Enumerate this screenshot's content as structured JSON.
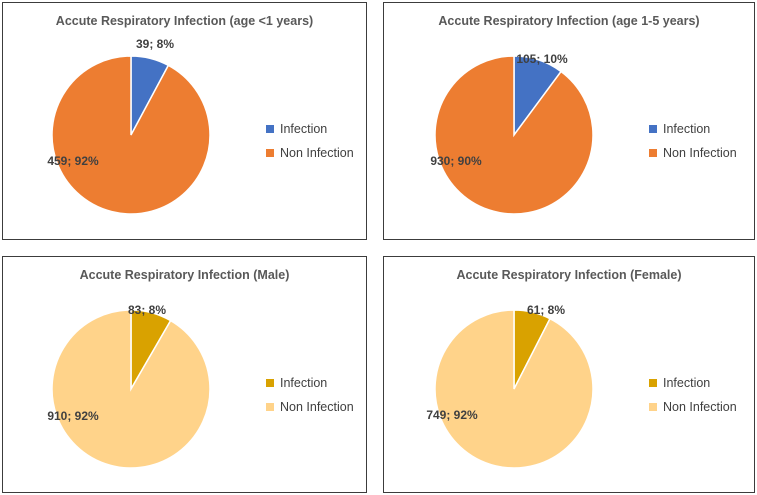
{
  "chart_data": [
    {
      "type": "pie",
      "title": "Accute Respiratory Infection (age <1 years)",
      "slices": [
        {
          "name": "Infection",
          "value": 39,
          "percent": 8,
          "label": "39; 8%",
          "color": "#4472C4"
        },
        {
          "name": "Non Infection",
          "value": 459,
          "percent": 92,
          "label": "459; 92%",
          "color": "#ED7D31"
        }
      ]
    },
    {
      "type": "pie",
      "title": "Accute Respiratory Infection (age 1-5 years)",
      "slices": [
        {
          "name": "Infection",
          "value": 105,
          "percent": 10,
          "label": "105; 10%",
          "color": "#4472C4"
        },
        {
          "name": "Non Infection",
          "value": 930,
          "percent": 90,
          "label": "930; 90%",
          "color": "#ED7D31"
        }
      ]
    },
    {
      "type": "pie",
      "title": "Accute Respiratory Infection (Male)",
      "slices": [
        {
          "name": "Infection",
          "value": 83,
          "percent": 8,
          "label": "83; 8%",
          "color": "#D9A200"
        },
        {
          "name": "Non Infection",
          "value": 910,
          "percent": 92,
          "label": "910; 92%",
          "color": "#FFD38A"
        }
      ]
    },
    {
      "type": "pie",
      "title": "Accute Respiratory Infection (Female)",
      "slices": [
        {
          "name": "Infection",
          "value": 61,
          "percent": 8,
          "label": "61; 8%",
          "color": "#D9A200"
        },
        {
          "name": "Non Infection",
          "value": 749,
          "percent": 92,
          "label": "749; 92%",
          "color": "#FFD38A"
        }
      ]
    }
  ]
}
